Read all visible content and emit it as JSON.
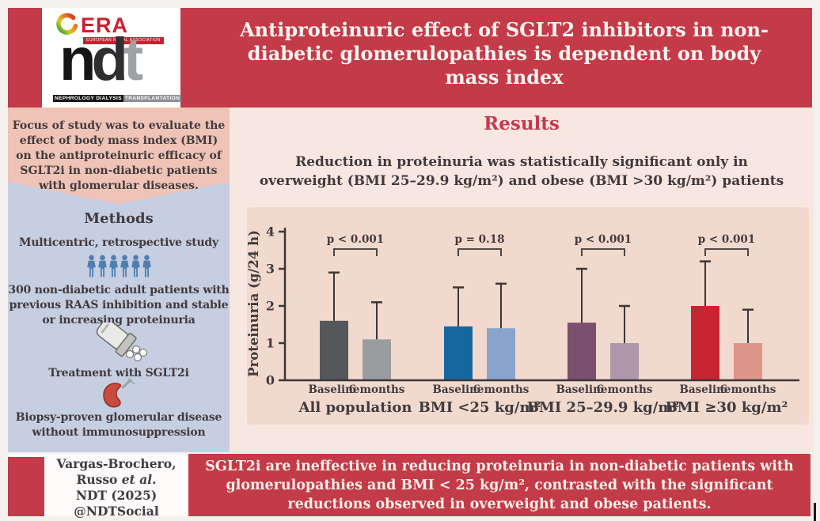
{
  "logo": {
    "era_text": "ERA",
    "era_tagline": "EUROPEAN RENAL ASSOCIATION",
    "ndt_letters": [
      "n",
      "d",
      "t"
    ],
    "journal_strip_1": "NEPHROLOGY DIALYSIS",
    "journal_strip_2": "TRANSPLANTATION"
  },
  "header": {
    "title": "Antiproteinuric effect of SGLT2 inhibitors in non-diabetic glomerulopathies is dependent on body mass index"
  },
  "sidebar": {
    "focus": "Focus of study was to evaluate the effect of body mass index (BMI) on the antiproteinuric efficacy of SGLT2i in non-diabetic patients with glomerular diseases.",
    "methods_heading": "Methods",
    "items": [
      {
        "text": "Multicentric, retrospective study"
      },
      {
        "text": "300 non-diabetic adult patients with previous RAAS inhibition and stable or increasing proteinuria"
      },
      {
        "text": "Treatment with SGLT2i"
      },
      {
        "text": "Biopsy-proven glomerular disease without immunosuppression"
      }
    ]
  },
  "results": {
    "heading": "Results",
    "subtitle": "Reduction in proteinuria was statistically significant only in overweight (BMI 25–29.9 kg/m²) and obese (BMI >30 kg/m²) patients"
  },
  "chart_data": {
    "type": "bar",
    "ylabel": "Proteinuria (g/24 h)",
    "ylim": [
      0,
      4
    ],
    "yticks": [
      0,
      1,
      2,
      3,
      4
    ],
    "categories": [
      "All population",
      "BMI <25 kg/m²",
      "BMI 25–29.9 kg/m²",
      "BMI ≥30 kg/m²"
    ],
    "series": [
      {
        "name": "Baseline",
        "values": [
          1.6,
          1.45,
          1.55,
          2.0
        ],
        "error_top": [
          2.9,
          2.5,
          3.0,
          3.2
        ],
        "colors": [
          "#55585a",
          "#14689f",
          "#7b4f6e",
          "#c92433"
        ]
      },
      {
        "name": "6 months",
        "values": [
          1.1,
          1.4,
          1.0,
          1.0
        ],
        "error_top": [
          2.1,
          2.6,
          2.0,
          1.9
        ],
        "colors": [
          "#9a9da0",
          "#8aa3cc",
          "#ad97a9",
          "#de9589"
        ]
      }
    ],
    "p_values": [
      "p < 0.001",
      "p = 0.18",
      "p < 0.001",
      "p < 0.001"
    ],
    "axis_color": "#3b3638",
    "grid": false,
    "legend_position": "none"
  },
  "conclusion": "SGLT2i are ineffective in reducing proteinuria in non-diabetic patients with glomerulopathies and BMI < 25 kg/m², contrasted with the significant reductions observed in overweight and obese patients.",
  "citation": {
    "line1": "Vargas-Brochero,",
    "line2_prefix": "Russo ",
    "line2_italic": "et al.",
    "line3": "NDT (2025)",
    "line4": "@NDTSocial"
  },
  "colors": {
    "banner_red": "#c33b48",
    "accent_red": "#c43a4d",
    "dark_text": "#413a3e",
    "sidebar_blue": "#c6cee1",
    "sidebar_pink": "#efc3b5",
    "main_bg": "#f8e7e1",
    "chart_bg": "#f1d9cd",
    "icon_blue": "#4e7fb0",
    "era_red": "#cc2030",
    "page_bg": "#f3f0ee"
  }
}
